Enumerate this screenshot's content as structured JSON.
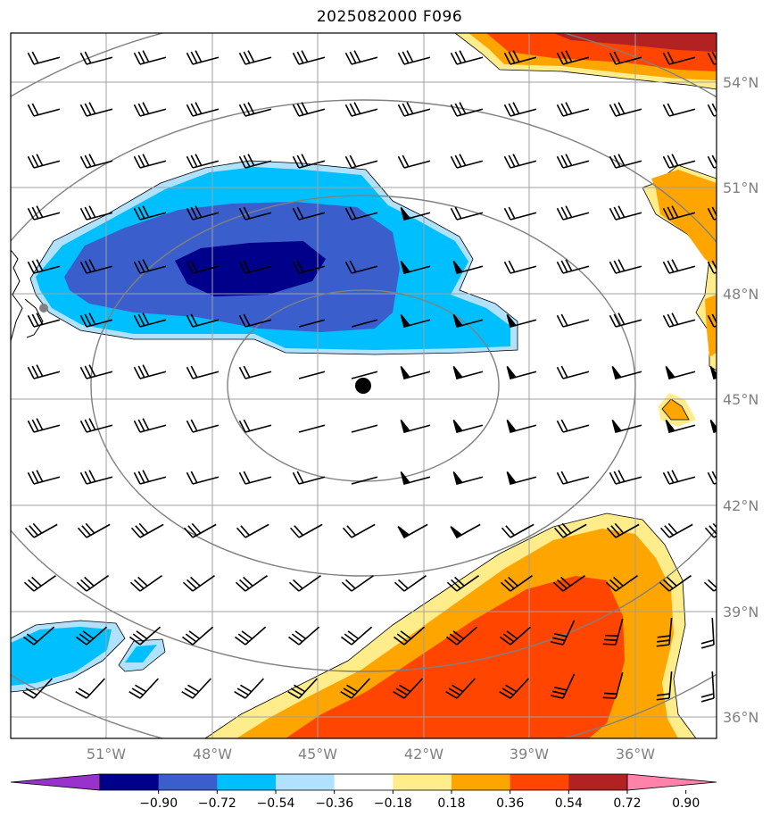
{
  "title": "2025082000 F096",
  "map": {
    "region": {
      "lon_min": -53.7,
      "lon_max": -33.7,
      "lat_min": 35.0,
      "lat_max": 55.0
    },
    "storm_center": {
      "lon": -43.2,
      "lat": 45.4
    },
    "lat_ticks": [
      {
        "value": 54,
        "label": "54°N"
      },
      {
        "value": 51,
        "label": "51°N"
      },
      {
        "value": 48,
        "label": "48°N"
      },
      {
        "value": 45,
        "label": "45°N"
      },
      {
        "value": 42,
        "label": "42°N"
      },
      {
        "value": 39,
        "label": "39°N"
      },
      {
        "value": 36,
        "label": "36°N"
      }
    ],
    "lon_ticks": [
      {
        "value": -51,
        "label": "51°W"
      },
      {
        "value": -48,
        "label": "48°W"
      },
      {
        "value": -45,
        "label": "45°W"
      },
      {
        "value": -42,
        "label": "42°W"
      },
      {
        "value": -39,
        "label": "39°W"
      },
      {
        "value": -36,
        "label": "36°W"
      }
    ]
  },
  "colorbar": {
    "levels": [
      -0.9,
      -0.72,
      -0.54,
      -0.36,
      -0.18,
      0.18,
      0.36,
      0.54,
      0.72,
      0.9
    ],
    "labels": [
      "−0.90",
      "−0.72",
      "−0.54",
      "−0.36",
      "−0.18",
      "0.18",
      "0.36",
      "0.54",
      "0.72",
      "0.90"
    ],
    "colors": [
      "#9932cc",
      "#00008b",
      "#3a5fcd",
      "#00bfff",
      "#b0e2ff",
      "#ffffff",
      "#ffec8b",
      "#ffa500",
      "#ff4500",
      "#b22222",
      "#ff82ab"
    ]
  }
}
